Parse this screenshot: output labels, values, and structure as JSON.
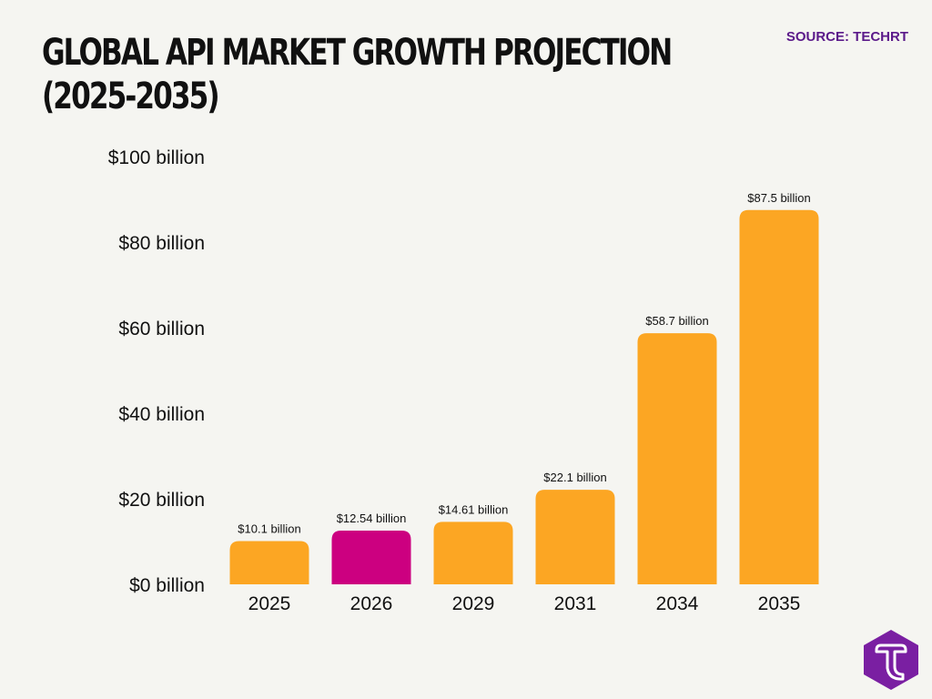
{
  "header": {
    "title_line1": "GLOBAL API MARKET GROWTH PROJECTION",
    "title_line2": "(2025-2035)",
    "source": "SOURCE: TECHRT"
  },
  "logo": {
    "icon": "techrt-t-logo-icon",
    "color": "#7a1fa2"
  },
  "chart_data": {
    "type": "bar",
    "categories": [
      "2025",
      "2026",
      "2029",
      "2031",
      "2034",
      "2035"
    ],
    "values": [
      10.1,
      12.54,
      14.61,
      22.1,
      58.7,
      87.5
    ],
    "data_labels": [
      "$10.1 billion",
      "$12.54 billion",
      "$14.61 billion",
      "$22.1 billion",
      "$58.7 billion",
      "$87.5 billion"
    ],
    "bar_colors": [
      "#fca623",
      "#cc0080",
      "#fca623",
      "#fca623",
      "#fca623",
      "#fca623"
    ],
    "ylim": [
      0,
      100
    ],
    "yticks": [
      0,
      20,
      40,
      60,
      80,
      100
    ],
    "ytick_labels": [
      "$0 billion",
      "$20 billion",
      "$40 billion",
      "$60 billion",
      "$80 billion",
      "$100 billion"
    ],
    "grid": false,
    "legend": "none"
  }
}
